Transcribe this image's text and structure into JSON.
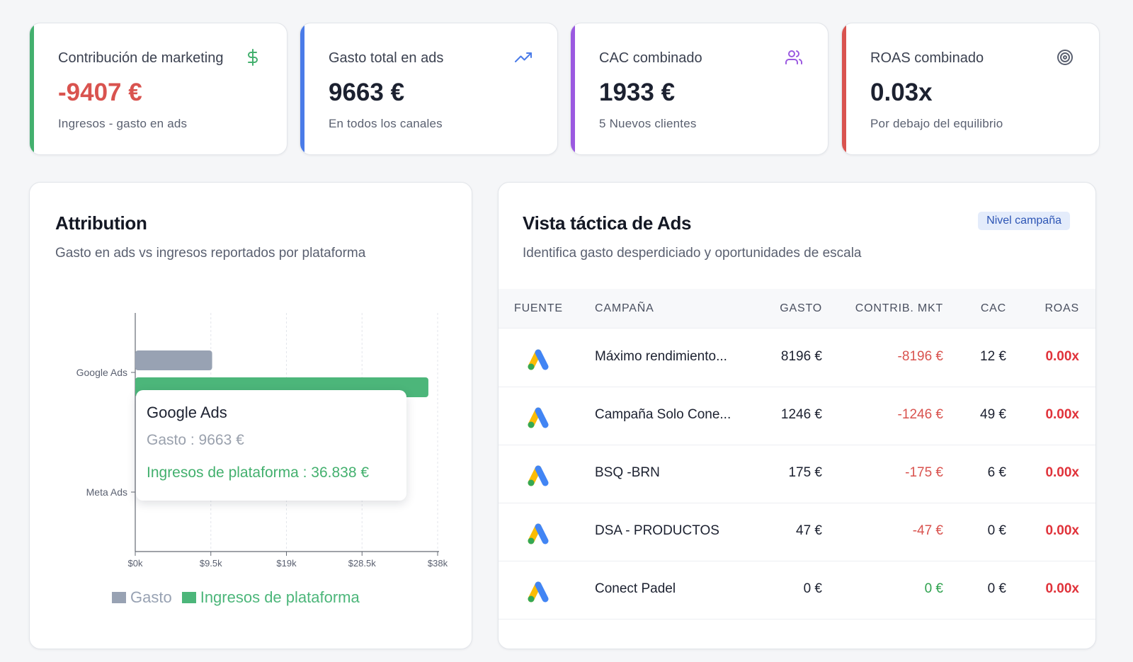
{
  "kpis": [
    {
      "title": "Contribución de marketing",
      "value": "-9407 €",
      "sub": "Ingresos - gasto en ads",
      "icon": "dollar-icon",
      "accent": "#43b06e"
    },
    {
      "title": "Gasto total en ads",
      "value": "9663 €",
      "sub": "En todos los canales",
      "icon": "trending-up-icon",
      "accent": "#4a7be8"
    },
    {
      "title": "CAC combinado",
      "value": "1933 €",
      "sub": "5 Nuevos clientes",
      "icon": "users-icon",
      "accent": "#9b59e0"
    },
    {
      "title": "ROAS combinado",
      "value": "0.03x",
      "sub": "Por debajo del equilibrio",
      "icon": "target-icon",
      "accent": "#d9534f"
    }
  ],
  "attribution": {
    "title": "Attribution",
    "description": "Gasto en ads vs ingresos reportados por plataforma",
    "tooltip": {
      "title": "Google Ads",
      "line1": "Gasto : 9663 €",
      "line2": "Ingresos de plataforma : 36.838 €"
    },
    "legend": [
      "Gasto",
      "Ingresos de plataforma"
    ]
  },
  "chart_data": {
    "type": "bar",
    "orientation": "horizontal",
    "categories": [
      "Google Ads",
      "Meta Ads"
    ],
    "series": [
      {
        "name": "Gasto",
        "values": [
          9663,
          0
        ],
        "color": "#98a2b3"
      },
      {
        "name": "Ingresos de plataforma",
        "values": [
          36838,
          0
        ],
        "color": "#4cb67a"
      }
    ],
    "x_ticks": [
      "$0k",
      "$9.5k",
      "$19k",
      "$28.5k",
      "$38k"
    ],
    "x_tick_values": [
      0,
      9500,
      19000,
      28500,
      38000
    ],
    "xlim": [
      0,
      38000
    ],
    "grid": "vertical dashed",
    "legend": "bottom"
  },
  "ads": {
    "title": "Vista táctica de Ads",
    "description": "Identifica gasto desperdiciado y oportunidades de escala",
    "badge": "Nivel campaña",
    "columns": [
      "FUENTE",
      "CAMPAÑA",
      "GASTO",
      "CONTRIB. MKT",
      "CAC",
      "ROAS"
    ],
    "rows": [
      {
        "source": "google-ads-icon",
        "campaign": "Máximo rendimiento...",
        "spend": "8196 €",
        "contrib": "-8196 €",
        "cac": "12 €",
        "roas": "0.00x"
      },
      {
        "source": "google-ads-icon",
        "campaign": "Campaña Solo Cone...",
        "spend": "1246 €",
        "contrib": "-1246 €",
        "cac": "49 €",
        "roas": "0.00x"
      },
      {
        "source": "google-ads-icon",
        "campaign": "BSQ -BRN",
        "spend": "175 €",
        "contrib": "-175 €",
        "cac": "6 €",
        "roas": "0.00x"
      },
      {
        "source": "google-ads-icon",
        "campaign": "DSA - PRODUCTOS",
        "spend": "47 €",
        "contrib": "-47 €",
        "cac": "0 €",
        "roas": "0.00x"
      },
      {
        "source": "google-ads-icon",
        "campaign": "Conect Padel",
        "spend": "0 €",
        "contrib": "0 €",
        "cac": "0 €",
        "roas": "0.00x"
      }
    ]
  }
}
